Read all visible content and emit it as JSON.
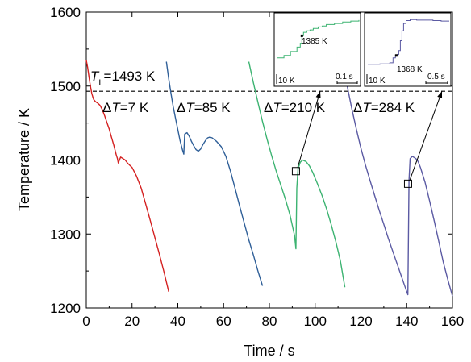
{
  "chart_data": {
    "type": "line",
    "xlabel": "Time / s",
    "ylabel": "Temperature / K",
    "xlim": [
      0,
      160
    ],
    "ylim": [
      1200,
      1600
    ],
    "x_ticks": [
      0,
      20,
      40,
      60,
      80,
      100,
      120,
      140,
      160
    ],
    "y_ticks": [
      1200,
      1300,
      1400,
      1500,
      1600
    ],
    "liquidus": {
      "value": 1493,
      "label_main": "T",
      "label_sub": "L",
      "label_value": "=1493 K"
    },
    "series": [
      {
        "color": "#d42020",
        "label_delta": "Δ",
        "label_T": "T",
        "label_value": "=7 K",
        "points": [
          [
            0,
            1535
          ],
          [
            0.6,
            1525
          ],
          [
            1.2,
            1512
          ],
          [
            1.8,
            1500
          ],
          [
            2.4,
            1490
          ],
          [
            2.8,
            1486
          ],
          [
            3.2,
            1482
          ],
          [
            4,
            1479
          ],
          [
            5,
            1477
          ],
          [
            6,
            1474
          ],
          [
            7,
            1468
          ],
          [
            8,
            1460
          ],
          [
            9,
            1451
          ],
          [
            10,
            1442
          ],
          [
            11,
            1431
          ],
          [
            12,
            1420
          ],
          [
            13,
            1408
          ],
          [
            13.6,
            1402
          ],
          [
            14,
            1396
          ],
          [
            15,
            1404
          ],
          [
            16,
            1402
          ],
          [
            17,
            1400
          ],
          [
            18,
            1396
          ],
          [
            20,
            1390
          ],
          [
            22,
            1378
          ],
          [
            24,
            1362
          ],
          [
            26,
            1340
          ],
          [
            28,
            1318
          ],
          [
            30,
            1295
          ],
          [
            32,
            1272
          ],
          [
            34,
            1248
          ],
          [
            36,
            1222
          ]
        ]
      },
      {
        "color": "#2f5f98",
        "label_delta": "Δ",
        "label_T": "T",
        "label_value": "=85 K",
        "points": [
          [
            35,
            1533
          ],
          [
            36,
            1510
          ],
          [
            37,
            1490
          ],
          [
            38,
            1472
          ],
          [
            39,
            1456
          ],
          [
            40,
            1441
          ],
          [
            41,
            1426
          ],
          [
            42,
            1414
          ],
          [
            42.6,
            1408
          ],
          [
            43,
            1435
          ],
          [
            44,
            1437
          ],
          [
            45,
            1432
          ],
          [
            46,
            1425
          ],
          [
            47,
            1419
          ],
          [
            48,
            1414
          ],
          [
            49,
            1412
          ],
          [
            50,
            1415
          ],
          [
            51,
            1421
          ],
          [
            52,
            1426
          ],
          [
            53,
            1430
          ],
          [
            54,
            1431
          ],
          [
            55,
            1430
          ],
          [
            57,
            1425
          ],
          [
            59,
            1418
          ],
          [
            61,
            1405
          ],
          [
            63,
            1385
          ],
          [
            65,
            1362
          ],
          [
            67,
            1338
          ],
          [
            69,
            1315
          ],
          [
            71,
            1292
          ],
          [
            73,
            1272
          ],
          [
            75,
            1250
          ],
          [
            77,
            1230
          ]
        ]
      },
      {
        "color": "#3cb371",
        "label_delta": "Δ",
        "label_T": "T",
        "label_value": "=210 K",
        "points": [
          [
            71,
            1533
          ],
          [
            73,
            1505
          ],
          [
            75,
            1478
          ],
          [
            77,
            1452
          ],
          [
            79,
            1428
          ],
          [
            81,
            1406
          ],
          [
            83,
            1385
          ],
          [
            85,
            1366
          ],
          [
            87,
            1347
          ],
          [
            89,
            1326
          ],
          [
            91,
            1298
          ],
          [
            91.6,
            1280
          ],
          [
            92,
            1362
          ],
          [
            92.5,
            1388
          ],
          [
            93.5,
            1397
          ],
          [
            94.5,
            1400
          ],
          [
            96,
            1398
          ],
          [
            97.5,
            1392
          ],
          [
            99,
            1383
          ],
          [
            101,
            1368
          ],
          [
            103,
            1352
          ],
          [
            105,
            1334
          ],
          [
            107,
            1313
          ],
          [
            109,
            1290
          ],
          [
            111,
            1264
          ],
          [
            113,
            1228
          ]
        ]
      },
      {
        "color": "#5b5aa3",
        "label_delta": "Δ",
        "label_T": "T",
        "label_value": "=284 K",
        "points": [
          [
            112,
            1533
          ],
          [
            114,
            1500
          ],
          [
            116,
            1470
          ],
          [
            118,
            1442
          ],
          [
            120,
            1416
          ],
          [
            122,
            1393
          ],
          [
            124,
            1372
          ],
          [
            126,
            1352
          ],
          [
            128,
            1332
          ],
          [
            130,
            1313
          ],
          [
            132,
            1294
          ],
          [
            134,
            1276
          ],
          [
            136,
            1258
          ],
          [
            138,
            1240
          ],
          [
            140,
            1222
          ],
          [
            140.5,
            1218
          ],
          [
            141,
            1372
          ],
          [
            141.5,
            1402
          ],
          [
            142.5,
            1405
          ],
          [
            144,
            1402
          ],
          [
            145,
            1398
          ],
          [
            146,
            1390
          ],
          [
            148,
            1370
          ],
          [
            150,
            1345
          ],
          [
            152,
            1318
          ],
          [
            154,
            1290
          ],
          [
            156,
            1262
          ],
          [
            158,
            1238
          ],
          [
            160,
            1216
          ]
        ]
      }
    ],
    "markers": [
      {
        "series": 2,
        "x": 91.6,
        "y": 1385
      },
      {
        "series": 3,
        "x": 140.6,
        "y": 1368
      }
    ],
    "insets": [
      {
        "color": "#3cb371",
        "point_label": "1385 K",
        "scale_y": "10 K",
        "scale_x": "0.1 s",
        "trace": [
          [
            0.0,
            0.85
          ],
          [
            0.08,
            0.8
          ],
          [
            0.16,
            0.72
          ],
          [
            0.24,
            0.63
          ],
          [
            0.28,
            0.55
          ],
          [
            0.3,
            0.4
          ],
          [
            0.32,
            0.33
          ],
          [
            0.36,
            0.3
          ],
          [
            0.4,
            0.28
          ],
          [
            0.44,
            0.25
          ],
          [
            0.5,
            0.22
          ],
          [
            0.55,
            0.2
          ],
          [
            0.6,
            0.17
          ],
          [
            0.7,
            0.15
          ],
          [
            0.8,
            0.12
          ],
          [
            0.9,
            0.1
          ],
          [
            1.0,
            0.08
          ]
        ],
        "point": [
          0.3,
          0.4
        ]
      },
      {
        "color": "#5b5aa3",
        "point_label": "1368 K",
        "scale_y": "10 K",
        "scale_x": "0.5 s",
        "trace": [
          [
            0.0,
            0.98
          ],
          [
            0.15,
            0.97
          ],
          [
            0.27,
            0.95
          ],
          [
            0.31,
            0.85
          ],
          [
            0.34,
            0.8
          ],
          [
            0.36,
            0.78
          ],
          [
            0.38,
            0.7
          ],
          [
            0.4,
            0.5
          ],
          [
            0.42,
            0.3
          ],
          [
            0.44,
            0.15
          ],
          [
            0.47,
            0.09
          ],
          [
            0.52,
            0.07
          ],
          [
            0.6,
            0.08
          ],
          [
            0.7,
            0.08
          ],
          [
            0.8,
            0.09
          ],
          [
            0.9,
            0.1
          ],
          [
            1.0,
            0.1
          ]
        ],
        "point": [
          0.35,
          0.8
        ]
      }
    ]
  }
}
